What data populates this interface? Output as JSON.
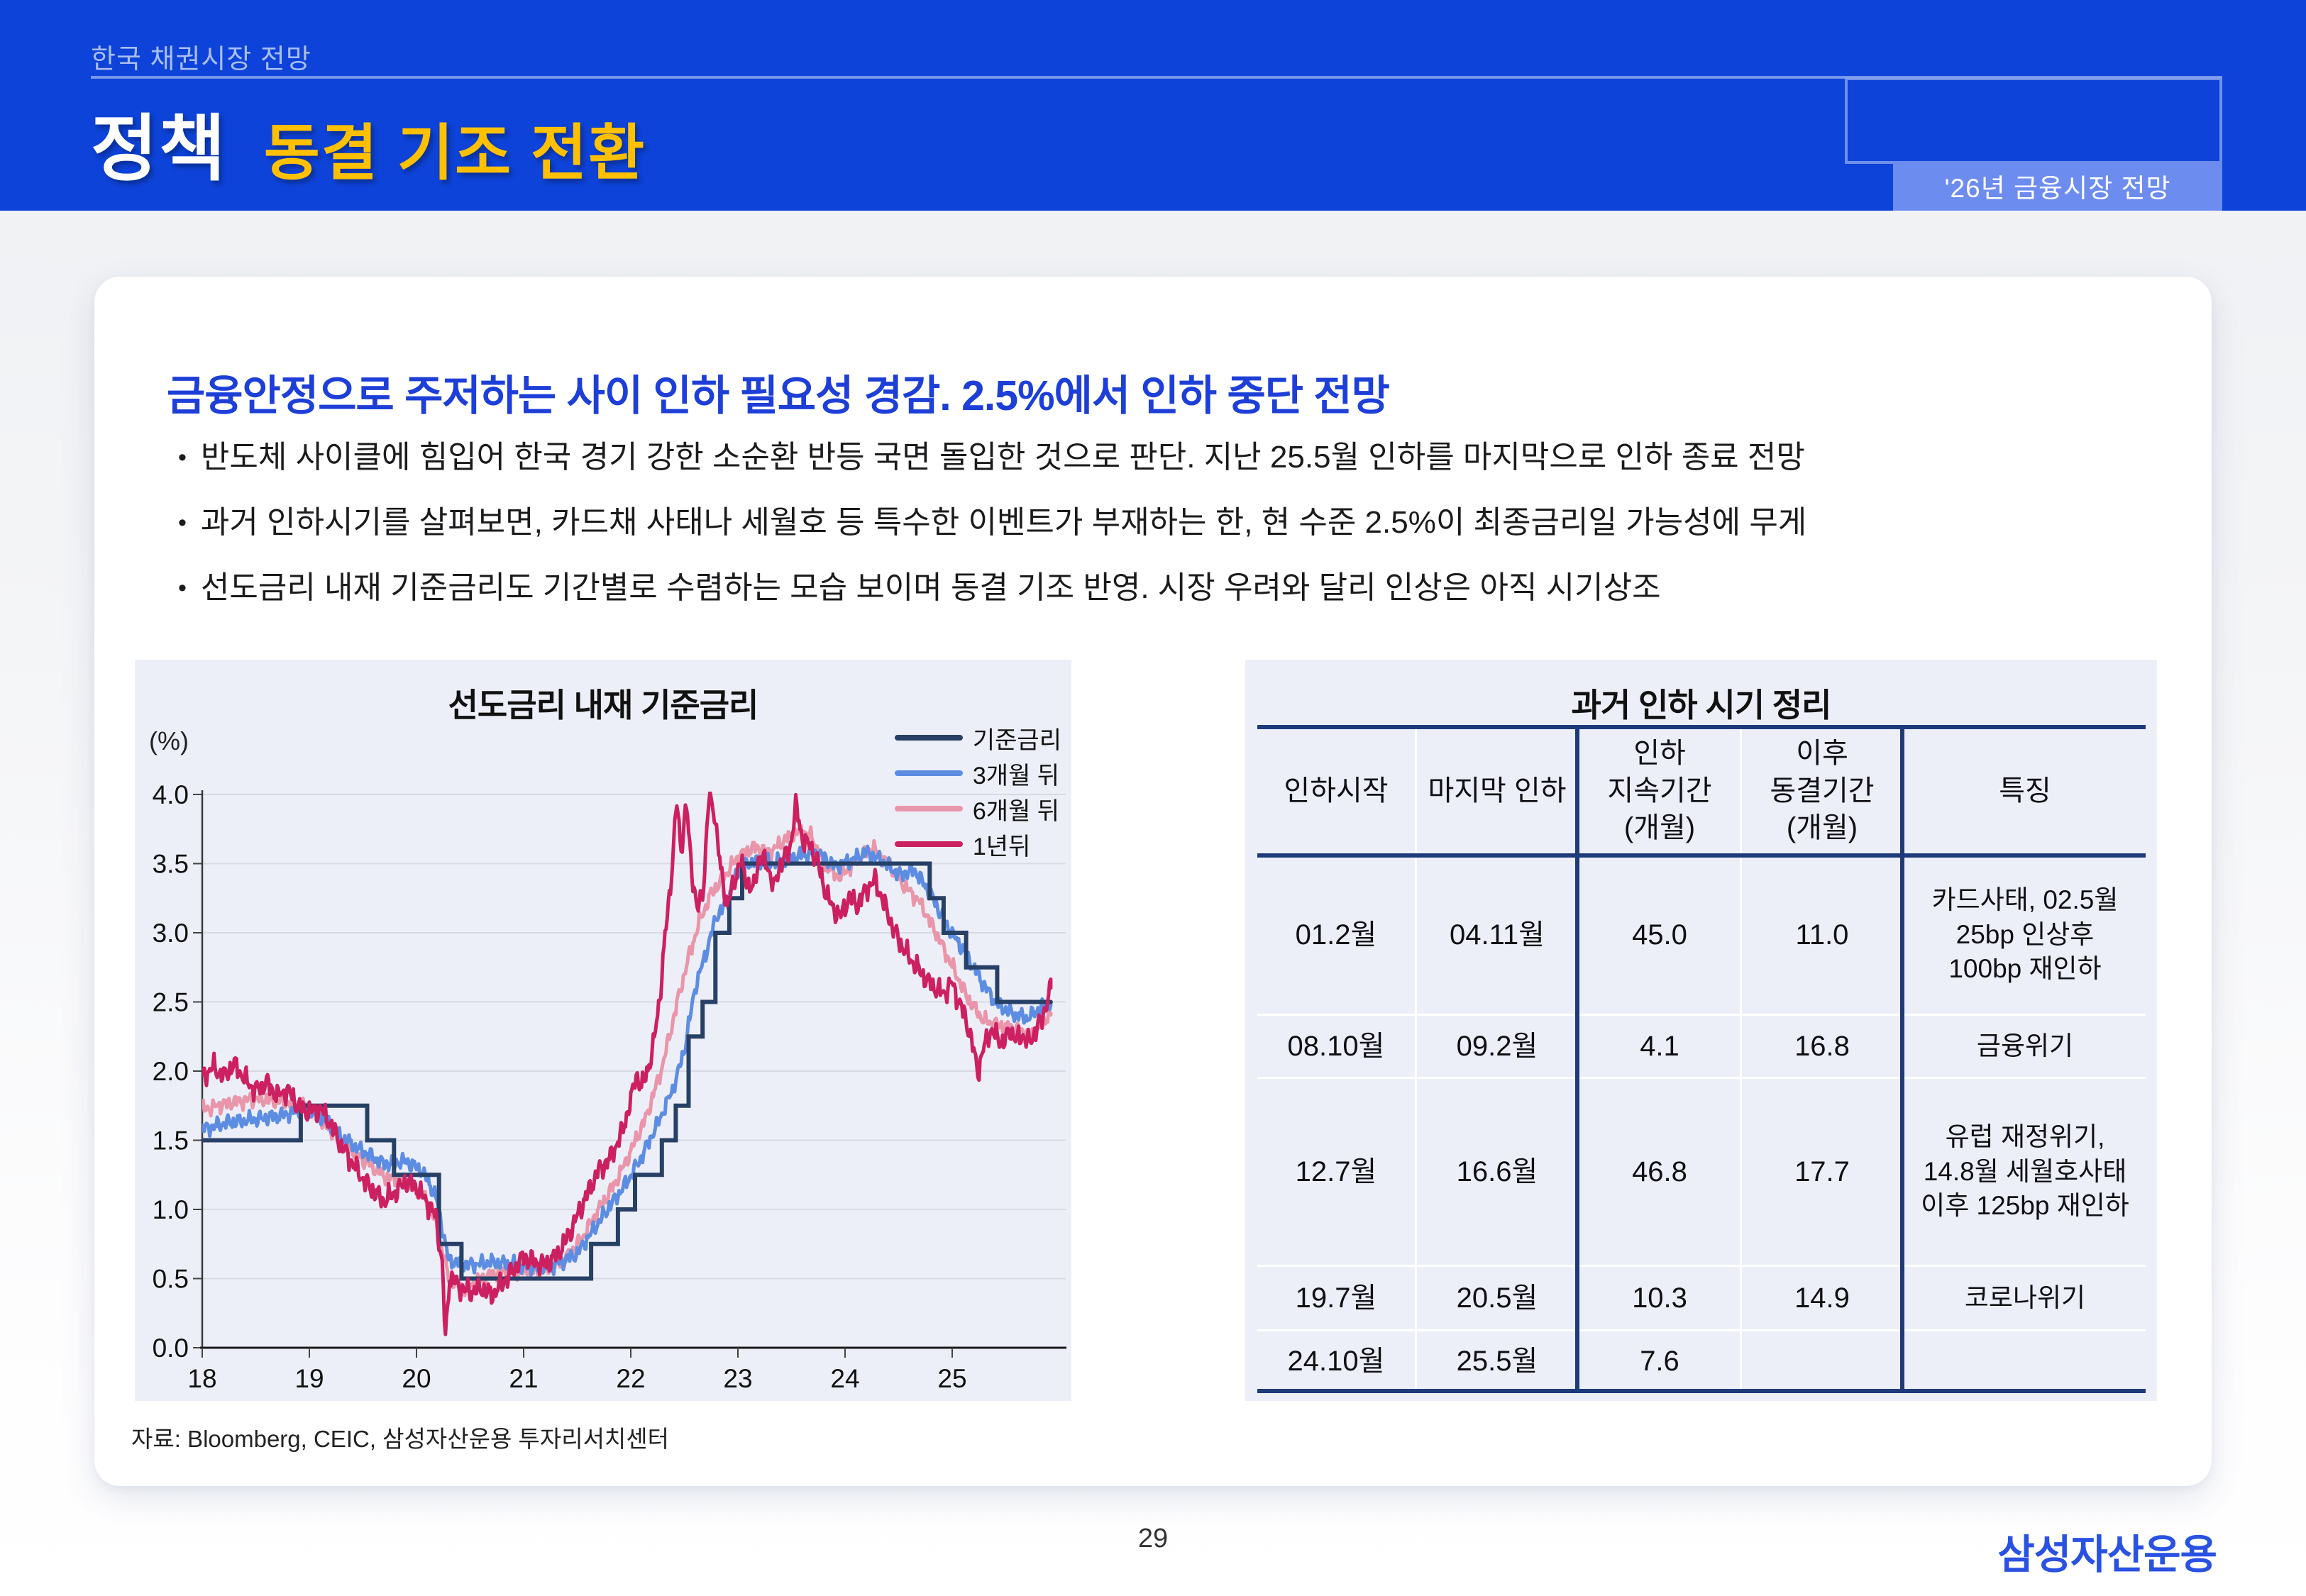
{
  "colors": {
    "header_bg": "#0d43d8",
    "title_accent": "#ffc000",
    "heading_blue": "#1d3fd8",
    "panel_bg": "#edeff8",
    "navy": "#1d3b7a",
    "badge_bg": "#6d8cf0",
    "logo_blue": "#2a52e2",
    "grid": "#d8dae3"
  },
  "header": {
    "eyebrow": "한국 채권시장 전망",
    "title_main": "정책",
    "title_sub": "동결 기조 전환",
    "badge": "'26년 금융시장 전망"
  },
  "card": {
    "heading": "금융안정으로 주저하는 사이 인하 필요성 경감. 2.5%에서 인하 중단 전망",
    "bullets": [
      "반도체 사이클에 힘입어 한국 경기 강한 소순환 반등 국면 돌입한 것으로 판단. 지난 25.5월 인하를 마지막으로 인하 종료 전망",
      "과거 인하시기를 살펴보면, 카드채 사태나 세월호 등 특수한 이벤트가 부재하는 한, 현 수준 2.5%이 최종금리일 가능성에 무게",
      "선도금리 내재 기준금리도 기간별로 수렴하는 모습 보이며 동결 기조 반영. 시장 우려와 달리 인상은 아직 시기상조"
    ],
    "source": "자료: Bloomberg, CEIC, 삼성자산운용 투자리서치센터"
  },
  "chart_data": {
    "type": "line",
    "title": "선도금리 내재 기준금리",
    "unit_label": "(%)",
    "ylabel": "(%)",
    "xlabel": "",
    "ylim": [
      0.0,
      4.0
    ],
    "yticks": [
      "4.0",
      "3.5",
      "3.0",
      "2.5",
      "2.0",
      "1.5",
      "1.0",
      "0.5",
      "0.0"
    ],
    "xticks": [
      "18",
      "19",
      "20",
      "21",
      "22",
      "23",
      "24",
      "25"
    ],
    "x_range_years": [
      2018.0,
      2025.92
    ],
    "grid": true,
    "legend_position": "top-right",
    "series": [
      {
        "name": "기준금리",
        "color": "#274066",
        "style": "step",
        "width": 6,
        "noise": 0,
        "seed": 0,
        "points": [
          [
            2018.0,
            1.5
          ],
          [
            2018.92,
            1.75
          ],
          [
            2019.54,
            1.5
          ],
          [
            2019.79,
            1.25
          ],
          [
            2020.21,
            0.75
          ],
          [
            2020.42,
            0.5
          ],
          [
            2021.63,
            0.75
          ],
          [
            2021.88,
            1.0
          ],
          [
            2022.04,
            1.25
          ],
          [
            2022.29,
            1.5
          ],
          [
            2022.42,
            1.75
          ],
          [
            2022.54,
            2.25
          ],
          [
            2022.67,
            2.5
          ],
          [
            2022.79,
            3.0
          ],
          [
            2022.92,
            3.25
          ],
          [
            2023.04,
            3.5
          ],
          [
            2024.79,
            3.25
          ],
          [
            2024.92,
            3.0
          ],
          [
            2025.13,
            2.75
          ],
          [
            2025.42,
            2.5
          ],
          [
            2025.92,
            2.5
          ]
        ]
      },
      {
        "name": "3개월 뒤",
        "color": "#5d8de2",
        "style": "line",
        "width": 5,
        "noise": 0.035,
        "seed": 1,
        "points": [
          [
            2018.0,
            1.58
          ],
          [
            2018.25,
            1.63
          ],
          [
            2018.5,
            1.65
          ],
          [
            2018.75,
            1.68
          ],
          [
            2018.95,
            1.73
          ],
          [
            2019.1,
            1.68
          ],
          [
            2019.3,
            1.52
          ],
          [
            2019.5,
            1.42
          ],
          [
            2019.7,
            1.33
          ],
          [
            2019.9,
            1.35
          ],
          [
            2020.05,
            1.28
          ],
          [
            2020.18,
            1.1
          ],
          [
            2020.3,
            0.63
          ],
          [
            2020.5,
            0.6
          ],
          [
            2020.7,
            0.62
          ],
          [
            2020.9,
            0.6
          ],
          [
            2021.1,
            0.58
          ],
          [
            2021.3,
            0.6
          ],
          [
            2021.5,
            0.68
          ],
          [
            2021.65,
            0.85
          ],
          [
            2021.8,
            1.02
          ],
          [
            2021.95,
            1.18
          ],
          [
            2022.1,
            1.38
          ],
          [
            2022.25,
            1.62
          ],
          [
            2022.4,
            1.88
          ],
          [
            2022.5,
            2.15
          ],
          [
            2022.6,
            2.6
          ],
          [
            2022.7,
            2.85
          ],
          [
            2022.8,
            3.12
          ],
          [
            2022.9,
            3.22
          ],
          [
            2023.0,
            3.45
          ],
          [
            2023.15,
            3.52
          ],
          [
            2023.3,
            3.5
          ],
          [
            2023.45,
            3.53
          ],
          [
            2023.6,
            3.56
          ],
          [
            2023.75,
            3.58
          ],
          [
            2023.9,
            3.48
          ],
          [
            2024.05,
            3.52
          ],
          [
            2024.2,
            3.58
          ],
          [
            2024.35,
            3.52
          ],
          [
            2024.5,
            3.42
          ],
          [
            2024.65,
            3.45
          ],
          [
            2024.8,
            3.28
          ],
          [
            2024.95,
            3.05
          ],
          [
            2025.1,
            2.88
          ],
          [
            2025.25,
            2.68
          ],
          [
            2025.4,
            2.5
          ],
          [
            2025.55,
            2.42
          ],
          [
            2025.7,
            2.38
          ],
          [
            2025.8,
            2.44
          ],
          [
            2025.92,
            2.5
          ]
        ]
      },
      {
        "name": "6개월 뒤",
        "color": "#ea96aa",
        "style": "line",
        "width": 5,
        "noise": 0.035,
        "seed": 2,
        "points": [
          [
            2018.0,
            1.72
          ],
          [
            2018.25,
            1.77
          ],
          [
            2018.5,
            1.8
          ],
          [
            2018.75,
            1.78
          ],
          [
            2018.95,
            1.75
          ],
          [
            2019.1,
            1.65
          ],
          [
            2019.3,
            1.5
          ],
          [
            2019.5,
            1.36
          ],
          [
            2019.7,
            1.24
          ],
          [
            2019.9,
            1.2
          ],
          [
            2020.05,
            1.12
          ],
          [
            2020.18,
            0.92
          ],
          [
            2020.3,
            0.5
          ],
          [
            2020.45,
            0.42
          ],
          [
            2020.6,
            0.5
          ],
          [
            2020.8,
            0.55
          ],
          [
            2021.0,
            0.55
          ],
          [
            2021.2,
            0.56
          ],
          [
            2021.4,
            0.65
          ],
          [
            2021.55,
            0.8
          ],
          [
            2021.7,
            1.0
          ],
          [
            2021.85,
            1.18
          ],
          [
            2022.0,
            1.42
          ],
          [
            2022.15,
            1.68
          ],
          [
            2022.3,
            2.05
          ],
          [
            2022.45,
            2.55
          ],
          [
            2022.55,
            2.85
          ],
          [
            2022.65,
            3.1
          ],
          [
            2022.75,
            3.28
          ],
          [
            2022.85,
            3.38
          ],
          [
            2023.0,
            3.55
          ],
          [
            2023.15,
            3.62
          ],
          [
            2023.3,
            3.58
          ],
          [
            2023.45,
            3.68
          ],
          [
            2023.6,
            3.74
          ],
          [
            2023.7,
            3.68
          ],
          [
            2023.8,
            3.5
          ],
          [
            2023.95,
            3.4
          ],
          [
            2024.1,
            3.52
          ],
          [
            2024.25,
            3.62
          ],
          [
            2024.4,
            3.5
          ],
          [
            2024.55,
            3.34
          ],
          [
            2024.7,
            3.22
          ],
          [
            2024.85,
            3.0
          ],
          [
            2025.0,
            2.76
          ],
          [
            2025.15,
            2.52
          ],
          [
            2025.3,
            2.36
          ],
          [
            2025.45,
            2.33
          ],
          [
            2025.6,
            2.3
          ],
          [
            2025.75,
            2.26
          ],
          [
            2025.85,
            2.36
          ],
          [
            2025.92,
            2.42
          ]
        ]
      },
      {
        "name": "1년뒤",
        "color": "#cc2060",
        "style": "line",
        "width": 5,
        "noise": 0.05,
        "seed": 3,
        "points": [
          [
            2018.0,
            1.95
          ],
          [
            2018.1,
            2.03
          ],
          [
            2018.2,
            1.96
          ],
          [
            2018.3,
            2.05
          ],
          [
            2018.4,
            1.94
          ],
          [
            2018.5,
            1.86
          ],
          [
            2018.6,
            1.92
          ],
          [
            2018.7,
            1.82
          ],
          [
            2018.8,
            1.86
          ],
          [
            2018.9,
            1.74
          ],
          [
            2019.0,
            1.7
          ],
          [
            2019.1,
            1.73
          ],
          [
            2019.2,
            1.62
          ],
          [
            2019.3,
            1.46
          ],
          [
            2019.4,
            1.34
          ],
          [
            2019.5,
            1.22
          ],
          [
            2019.6,
            1.13
          ],
          [
            2019.7,
            1.06
          ],
          [
            2019.8,
            1.12
          ],
          [
            2019.9,
            1.2
          ],
          [
            2020.0,
            1.16
          ],
          [
            2020.1,
            1.05
          ],
          [
            2020.18,
            0.95
          ],
          [
            2020.24,
            0.6
          ],
          [
            2020.27,
            0.06
          ],
          [
            2020.31,
            0.52
          ],
          [
            2020.4,
            0.44
          ],
          [
            2020.5,
            0.4
          ],
          [
            2020.6,
            0.43
          ],
          [
            2020.7,
            0.38
          ],
          [
            2020.8,
            0.46
          ],
          [
            2020.9,
            0.56
          ],
          [
            2021.0,
            0.66
          ],
          [
            2021.1,
            0.62
          ],
          [
            2021.2,
            0.6
          ],
          [
            2021.3,
            0.66
          ],
          [
            2021.4,
            0.78
          ],
          [
            2021.5,
            0.95
          ],
          [
            2021.6,
            1.12
          ],
          [
            2021.7,
            1.28
          ],
          [
            2021.8,
            1.36
          ],
          [
            2021.9,
            1.52
          ],
          [
            2022.0,
            1.78
          ],
          [
            2022.05,
            1.98
          ],
          [
            2022.1,
            1.88
          ],
          [
            2022.2,
            2.12
          ],
          [
            2022.28,
            2.6
          ],
          [
            2022.33,
            3.05
          ],
          [
            2022.38,
            3.42
          ],
          [
            2022.43,
            3.95
          ],
          [
            2022.47,
            3.6
          ],
          [
            2022.52,
            3.92
          ],
          [
            2022.57,
            3.45
          ],
          [
            2022.62,
            3.15
          ],
          [
            2022.68,
            3.35
          ],
          [
            2022.73,
            3.98
          ],
          [
            2022.78,
            3.88
          ],
          [
            2022.84,
            3.45
          ],
          [
            2022.9,
            3.2
          ],
          [
            2022.96,
            3.35
          ],
          [
            2023.02,
            3.52
          ],
          [
            2023.08,
            3.38
          ],
          [
            2023.14,
            3.3
          ],
          [
            2023.2,
            3.56
          ],
          [
            2023.28,
            3.48
          ],
          [
            2023.34,
            3.32
          ],
          [
            2023.4,
            3.52
          ],
          [
            2023.48,
            3.58
          ],
          [
            2023.54,
            3.92
          ],
          [
            2023.6,
            3.68
          ],
          [
            2023.68,
            3.62
          ],
          [
            2023.74,
            3.52
          ],
          [
            2023.8,
            3.34
          ],
          [
            2023.88,
            3.18
          ],
          [
            2023.96,
            3.12
          ],
          [
            2024.04,
            3.26
          ],
          [
            2024.12,
            3.2
          ],
          [
            2024.2,
            3.32
          ],
          [
            2024.28,
            3.38
          ],
          [
            2024.36,
            3.22
          ],
          [
            2024.44,
            3.05
          ],
          [
            2024.52,
            2.92
          ],
          [
            2024.6,
            2.82
          ],
          [
            2024.68,
            2.74
          ],
          [
            2024.76,
            2.66
          ],
          [
            2024.84,
            2.6
          ],
          [
            2024.92,
            2.56
          ],
          [
            2025.0,
            2.64
          ],
          [
            2025.06,
            2.5
          ],
          [
            2025.12,
            2.4
          ],
          [
            2025.18,
            2.22
          ],
          [
            2025.24,
            2.0
          ],
          [
            2025.3,
            2.18
          ],
          [
            2025.36,
            2.3
          ],
          [
            2025.42,
            2.24
          ],
          [
            2025.48,
            2.2
          ],
          [
            2025.54,
            2.3
          ],
          [
            2025.6,
            2.22
          ],
          [
            2025.66,
            2.26
          ],
          [
            2025.72,
            2.2
          ],
          [
            2025.78,
            2.3
          ],
          [
            2025.84,
            2.38
          ],
          [
            2025.92,
            2.6
          ]
        ]
      }
    ]
  },
  "table": {
    "title": "과거 인하 시기 정리",
    "columns": [
      "인하시작",
      "마지막 인하",
      "인하\n지속기간\n(개월)",
      "이후\n동결기간\n(개월)",
      "특징"
    ],
    "rows": [
      [
        "01.2월",
        "04.11월",
        "45.0",
        "11.0",
        "카드사태, 02.5월\n25bp 인상후\n100bp 재인하"
      ],
      [
        "08.10월",
        "09.2월",
        "4.1",
        "16.8",
        "금융위기"
      ],
      [
        "12.7월",
        "16.6월",
        "46.8",
        "17.7",
        "유럽 재정위기,\n14.8월 세월호사태\n이후 125bp 재인하"
      ],
      [
        "19.7월",
        "20.5월",
        "10.3",
        "14.9",
        "코로나위기"
      ],
      [
        "24.10월",
        "25.5월",
        "7.6",
        "",
        ""
      ]
    ]
  },
  "footer": {
    "page_number": "29",
    "logo": "삼성자산운용"
  }
}
